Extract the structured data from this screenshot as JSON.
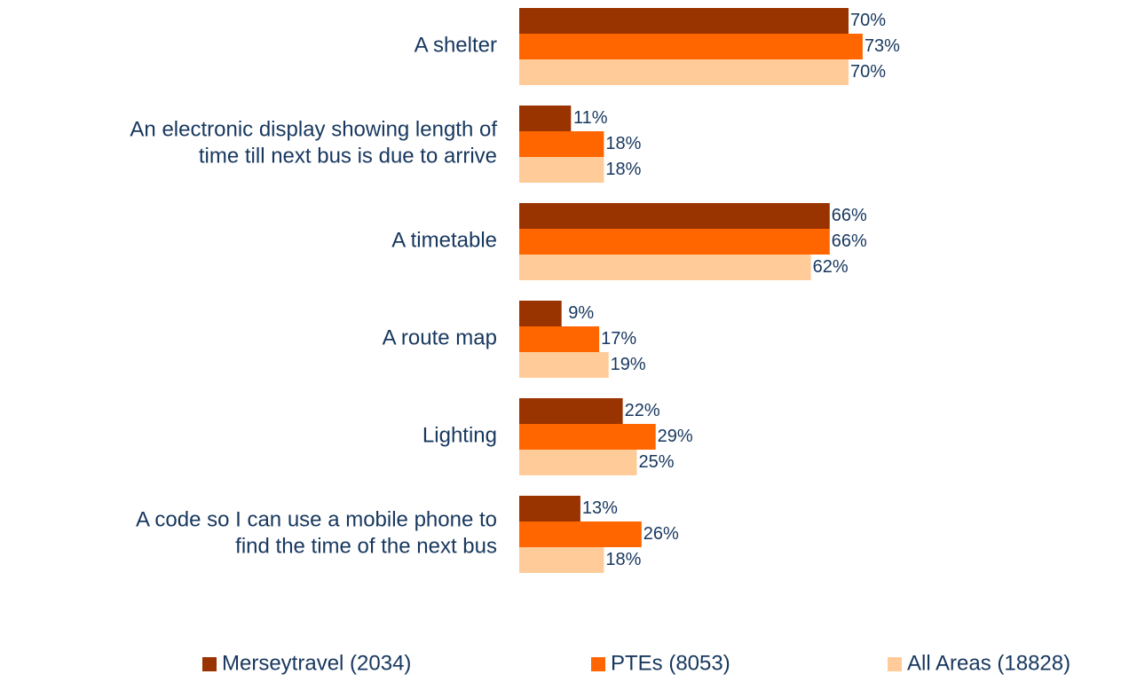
{
  "chart_data": {
    "type": "hbar",
    "categories": [
      "A shelter",
      "An electronic display showing length of\ntime till next bus is due to arrive",
      "A timetable",
      "A route map",
      "Lighting",
      "A code so I can use a mobile phone to\nfind the time of the next bus"
    ],
    "series": [
      {
        "name": "Merseytravel (2034)",
        "color": "#993300",
        "values": [
          70,
          11,
          66,
          9,
          22,
          13
        ],
        "value_labels": [
          "70%",
          "11%",
          "66%",
          "9%",
          "22%",
          "13%"
        ]
      },
      {
        "name": "PTEs (8053)",
        "color": "#FF6600",
        "values": [
          73,
          18,
          66,
          17,
          29,
          26
        ],
        "value_labels": [
          "73%",
          "18%",
          "66%",
          "17%",
          "29%",
          "26%"
        ]
      },
      {
        "name": "All Areas (18828)",
        "color": "#FFCC99",
        "values": [
          70,
          18,
          62,
          19,
          25,
          18
        ],
        "value_labels": [
          "70%",
          "18%",
          "62%",
          "19%",
          "25%",
          "18%"
        ]
      }
    ],
    "xlim": [
      0,
      100
    ],
    "legend": "bottom"
  }
}
